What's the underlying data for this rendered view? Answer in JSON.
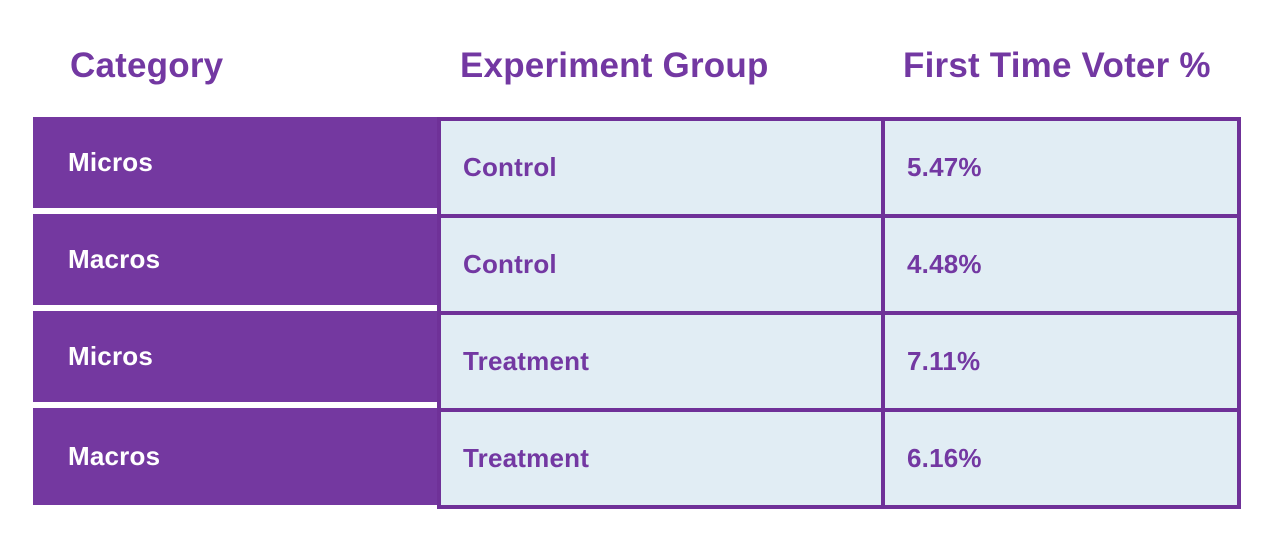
{
  "colors": {
    "column_purple": "#7438a0",
    "border_purple": "#6f3198",
    "cell_light_blue": "#e1edf4",
    "text_purple": "#7338a2",
    "text_white": "#ffffff",
    "background": "#ffffff"
  },
  "chart_data": {
    "type": "table",
    "title": "",
    "columns": [
      "Category",
      "Experiment Group",
      "First Time Voter %"
    ],
    "rows": [
      [
        "Micros",
        "Control",
        "5.47%"
      ],
      [
        "Macros",
        "Control",
        "4.48%"
      ],
      [
        "Micros",
        "Treatment",
        "7.11%"
      ],
      [
        "Macros",
        "Treatment",
        "6.16%"
      ]
    ],
    "values_numeric_percent": [
      5.47,
      4.48,
      7.11,
      6.16
    ]
  },
  "table": {
    "headers": {
      "category": "Category",
      "group": "Experiment Group",
      "value": "First Time Voter %"
    },
    "rows": [
      {
        "category": "Micros",
        "group": "Control",
        "value": "5.47%"
      },
      {
        "category": "Macros",
        "group": "Control",
        "value": "4.48%"
      },
      {
        "category": "Micros",
        "group": "Treatment",
        "value": "7.11%"
      },
      {
        "category": "Macros",
        "group": "Treatment",
        "value": "6.16%"
      }
    ]
  }
}
